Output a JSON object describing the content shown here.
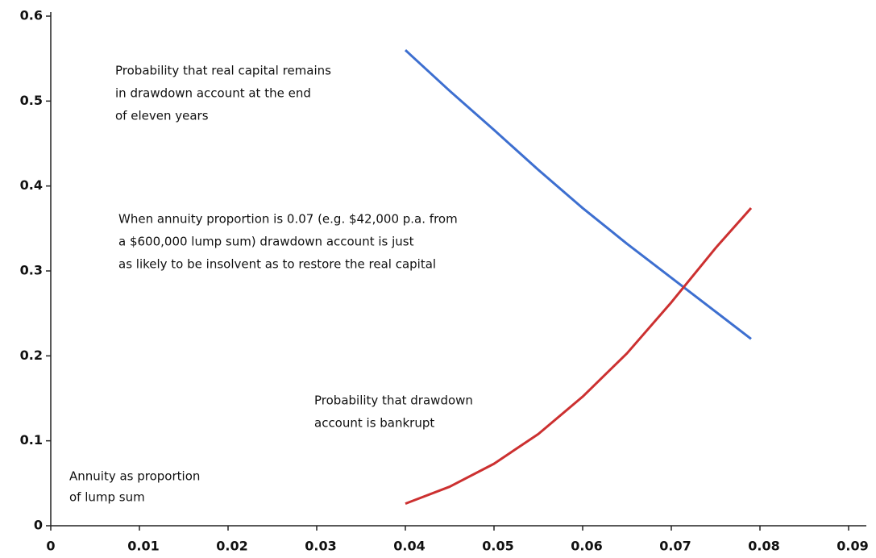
{
  "chart_data": {
    "type": "line",
    "x": [
      0.04,
      0.045,
      0.05,
      0.055,
      0.06,
      0.065,
      0.07,
      0.075,
      0.079
    ],
    "series": [
      {
        "name": "Probability that real capital remains in drawdown account at the end of eleven years",
        "color": "#3d6fd0",
        "values": [
          0.56,
          0.512,
          0.466,
          0.419,
          0.374,
          0.332,
          0.292,
          0.252,
          0.22
        ]
      },
      {
        "name": "Probability that drawdown account is bankrupt",
        "color": "#cc3030",
        "values": [
          0.026,
          0.046,
          0.073,
          0.108,
          0.152,
          0.203,
          0.263,
          0.327,
          0.374
        ]
      }
    ],
    "annotations": [
      [
        "Probability that real capital remains",
        "in drawdown account at the end",
        "of eleven years"
      ],
      [
        "When annuity proportion is 0.07 (e.g. $42,000 p.a. from",
        "a $600,000 lump sum) drawdown account is just",
        "as likely to be insolvent as to restore the real capital"
      ],
      [
        "Probability that drawdown",
        "account is bankrupt"
      ],
      [
        "Annuity as proportion",
        "of lump sum"
      ]
    ],
    "xlim": [
      0,
      0.092
    ],
    "xticks": [
      0,
      0.01,
      0.02,
      0.03,
      0.04,
      0.05,
      0.06,
      0.07,
      0.08,
      0.09
    ],
    "ylim": [
      0,
      0.6
    ],
    "yticks": [
      0,
      0.1,
      0.2,
      0.3,
      0.4,
      0.5,
      0.6
    ],
    "grid": false
  }
}
